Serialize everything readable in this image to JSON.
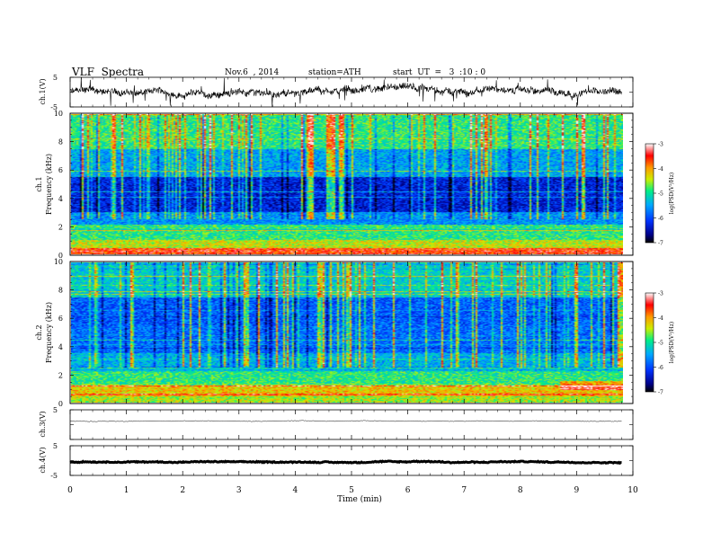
{
  "header": {
    "title": "VLF  Spectra",
    "date": "Nov.6  , 2014",
    "station": "station=ATH",
    "start_ut": "start  UT  =   3  :10 : 0"
  },
  "panels": {
    "ch1_label": "ch.1(V)",
    "ch3_label": "ch.3(V)",
    "ch4_label": "ch.4(V)",
    "spec1_channel": "ch.1",
    "spec2_channel": "ch.2",
    "freq_label": "Frequency  (kHz)",
    "xlabel": "Time  (min)",
    "colorbar_label": "log(PSD(V²/Hz)",
    "colorbar_ticks": [
      "-3",
      "-4",
      "-5",
      "-6",
      "-7"
    ],
    "colormap_colors": [
      "#000000",
      "#000088",
      "#0033ff",
      "#00a8ff",
      "#00ee88",
      "#ccee00",
      "#ff9900",
      "#ff0000",
      "#ffffff"
    ]
  },
  "chart_data": [
    {
      "type": "line",
      "name": "ch.1 waveform",
      "ylabel": "ch.1(V)",
      "ylim": [
        -5,
        5
      ],
      "yticks": [
        "5",
        "-5"
      ],
      "x_range_min": [
        0,
        9.8
      ],
      "baseline_v": 0,
      "noise_amplitude_v": [
        -1,
        1
      ]
    },
    {
      "type": "heatmap",
      "name": "ch.1 spectrogram",
      "ylabel": "Frequency  (kHz)",
      "ylim": [
        0,
        10
      ],
      "yticks": [
        "0",
        "2",
        "4",
        "6",
        "8",
        "10"
      ],
      "x_range_min": [
        0,
        9.8
      ],
      "z_label": "log(PSD(V²/Hz)",
      "zlim": [
        -7,
        -3
      ],
      "bands_khz": [
        {
          "f": [
            0,
            0.4
          ],
          "z": -3.6
        },
        {
          "f": [
            0.4,
            1.0
          ],
          "z": -4.4
        },
        {
          "f": [
            1.0,
            2.0
          ],
          "z": -4.9
        },
        {
          "f": [
            2.0,
            3.0
          ],
          "z": -5.6
        },
        {
          "f": [
            3.0,
            5.5
          ],
          "z": -6.3
        },
        {
          "f": [
            5.5,
            7.5
          ],
          "z": -5.5
        },
        {
          "f": [
            7.5,
            10.0
          ],
          "z": -4.9
        }
      ]
    },
    {
      "type": "heatmap",
      "name": "ch.2 spectrogram",
      "ylabel": "Frequency  (kHz)",
      "ylim": [
        0,
        10
      ],
      "yticks": [
        "0",
        "2",
        "4",
        "6",
        "8",
        "10"
      ],
      "x_range_min": [
        0,
        9.8
      ],
      "z_label": "log(PSD(V²/Hz)",
      "zlim": [
        -7,
        -3
      ],
      "bands_khz": [
        {
          "f": [
            0,
            0.4
          ],
          "z": -4.5
        },
        {
          "f": [
            0.4,
            1.2
          ],
          "z": -4.2
        },
        {
          "f": [
            1.2,
            2.2
          ],
          "z": -4.9
        },
        {
          "f": [
            2.2,
            3.5
          ],
          "z": -5.4
        },
        {
          "f": [
            3.5,
            5.5
          ],
          "z": -5.8
        },
        {
          "f": [
            5.5,
            7.5
          ],
          "z": -5.9
        },
        {
          "f": [
            7.5,
            10.0
          ],
          "z": -5.2
        }
      ]
    },
    {
      "type": "line",
      "name": "ch.3 waveform",
      "ylabel": "ch.3(V)",
      "ylim": [
        -5,
        5
      ],
      "yticks": [
        "5"
      ],
      "x_range_min": [
        0,
        9.8
      ],
      "baseline_v": 1.2,
      "noise_amplitude_v": [
        -0.1,
        0.1
      ]
    },
    {
      "type": "line",
      "name": "ch.4 waveform",
      "ylabel": "ch.4(V)",
      "ylim": [
        -5,
        5
      ],
      "yticks": [
        "5",
        "-5"
      ],
      "x_range_min": [
        0,
        9.8
      ],
      "baseline_v": -0.5,
      "noise_amplitude_v": [
        -0.15,
        0.15
      ]
    }
  ],
  "x_axis": {
    "label": "Time  (min)",
    "xlim": [
      0,
      10
    ],
    "ticks": [
      "0",
      "1",
      "2",
      "3",
      "4",
      "5",
      "6",
      "7",
      "8",
      "9",
      "10"
    ]
  }
}
